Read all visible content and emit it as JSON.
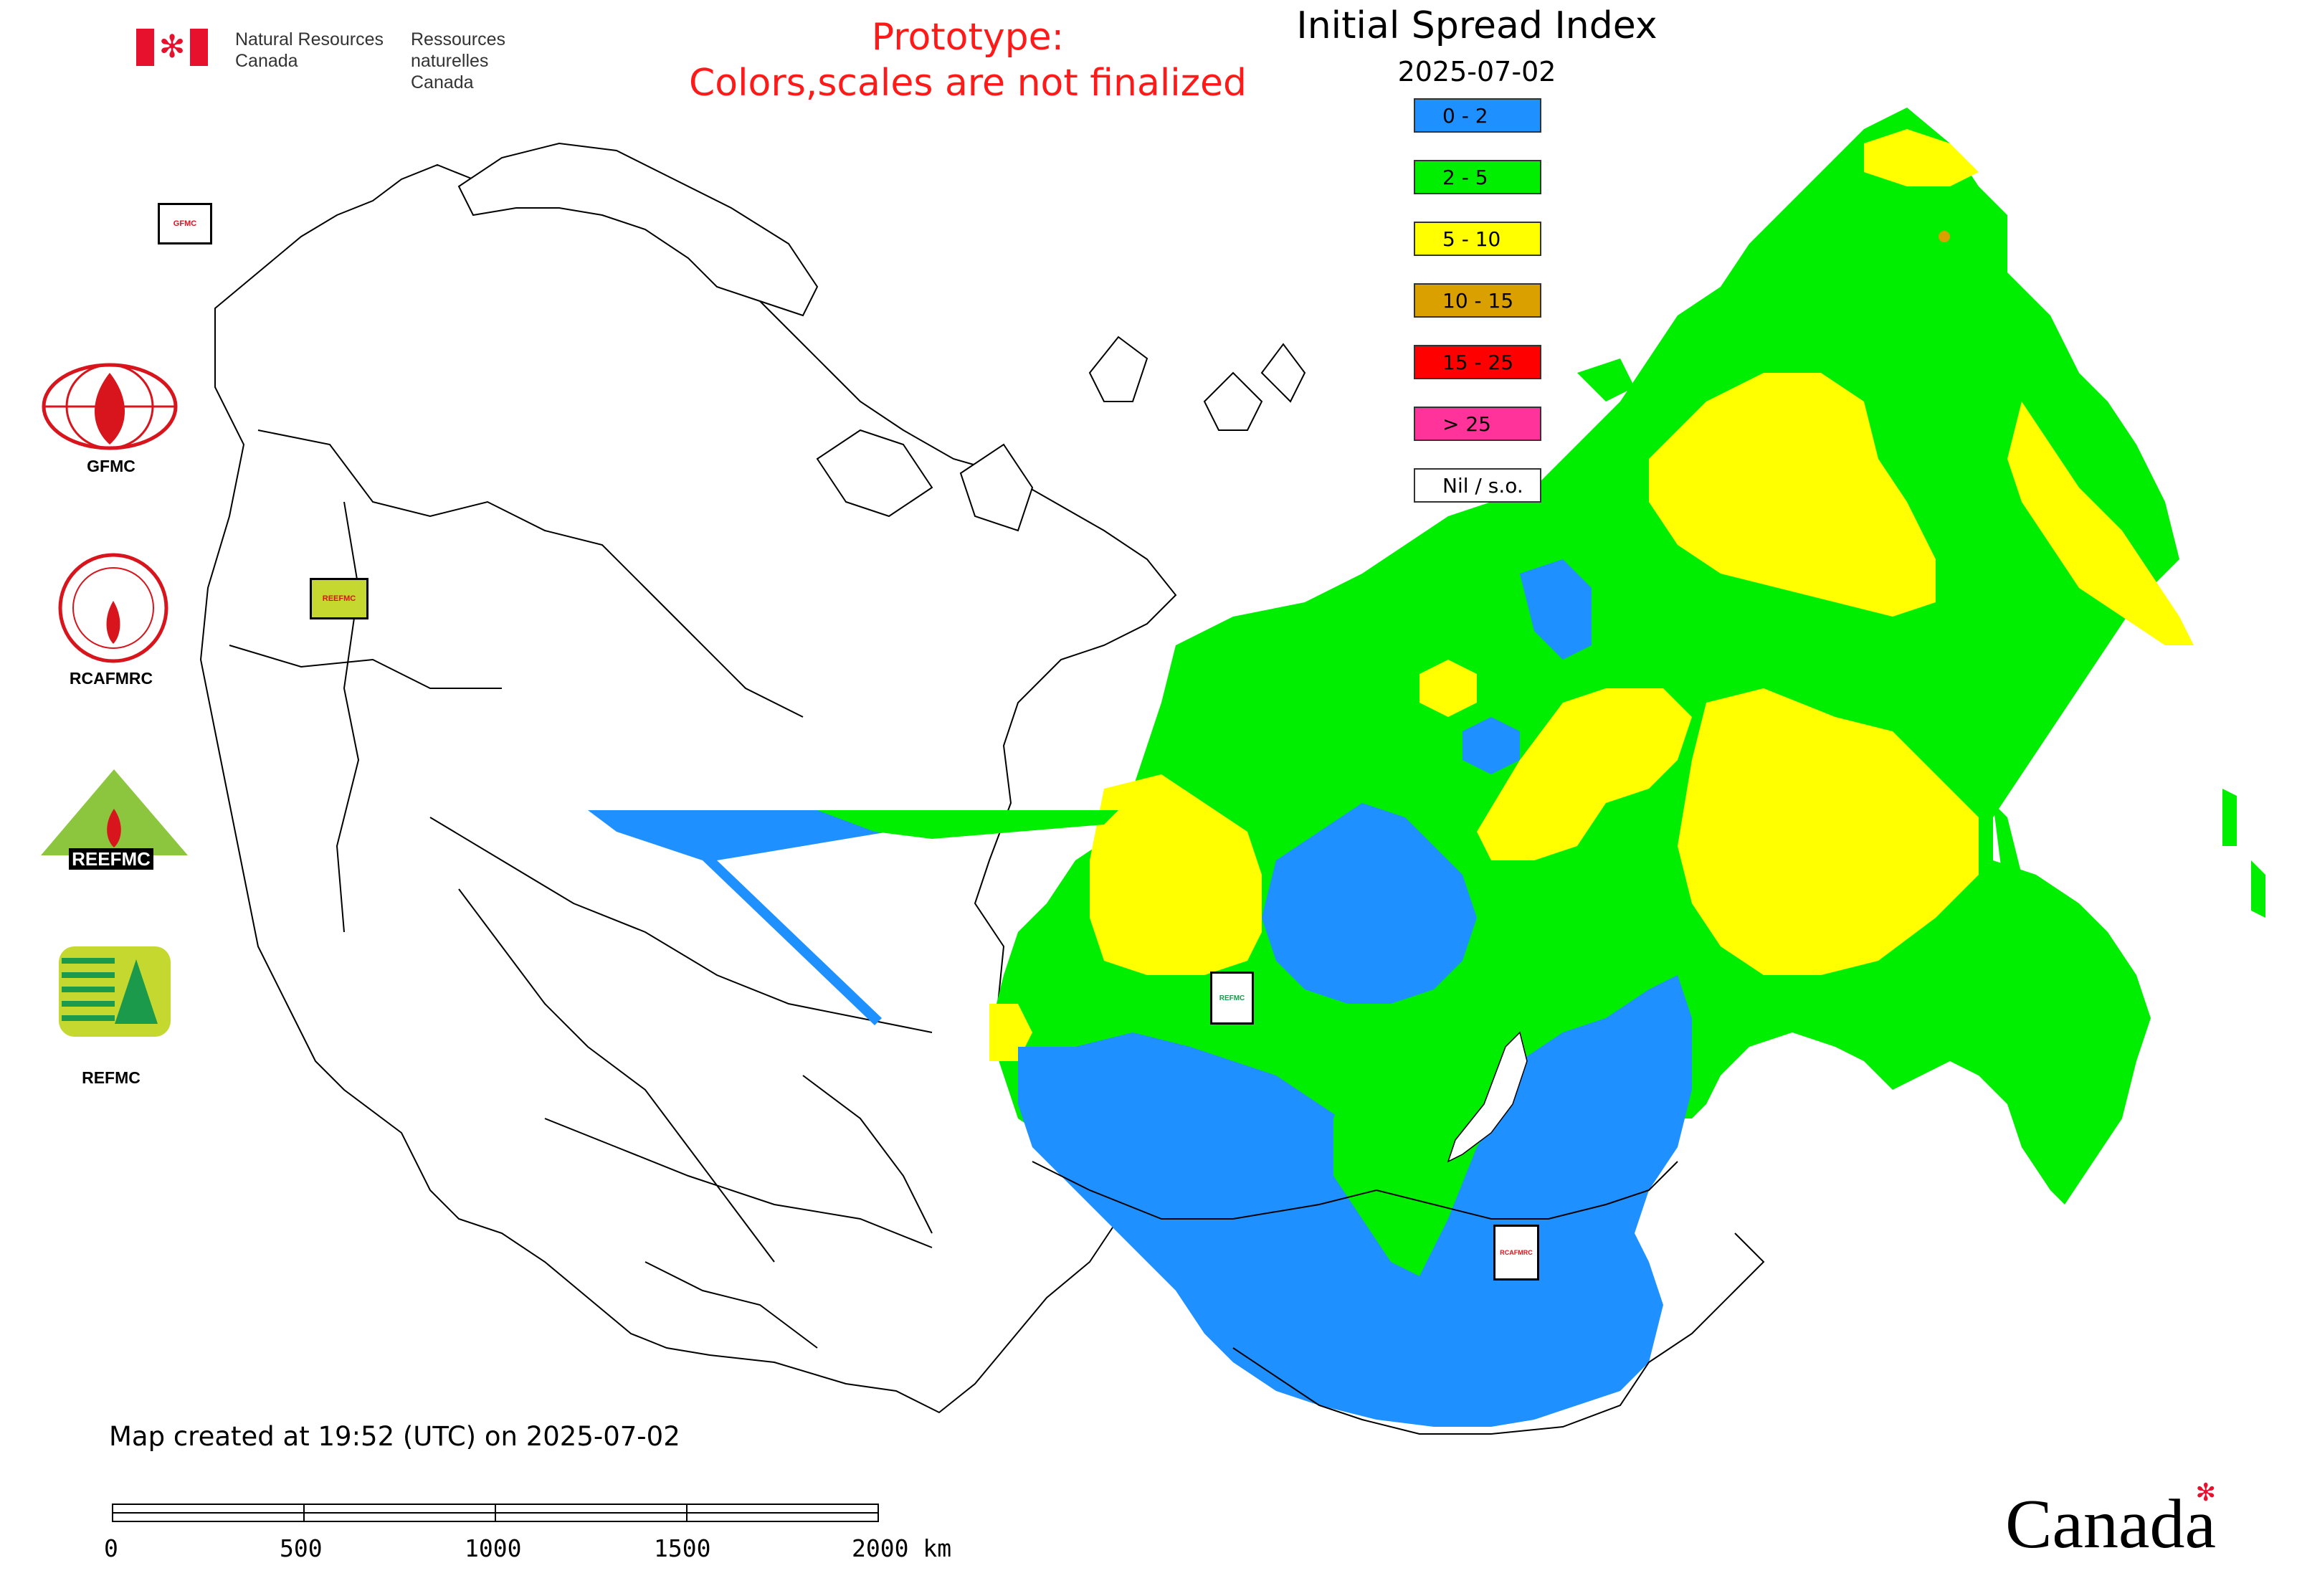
{
  "header": {
    "dept_en_line1": "Natural Resources",
    "dept_en_line2": "Canada",
    "dept_fr_line1": "Ressources naturelles",
    "dept_fr_line2": "Canada",
    "prototype_line1": "Prototype:",
    "prototype_line2": "Colors,scales are not finalized",
    "title": "Initial Spread Index",
    "date": "2025-07-02"
  },
  "legend": {
    "items": [
      {
        "label": "0 - 2",
        "color": "#1e90ff"
      },
      {
        "label": "2 - 5",
        "color": "#00ee00"
      },
      {
        "label": "5 - 10",
        "color": "#ffff00"
      },
      {
        "label": "10 - 15",
        "color": "#daa000"
      },
      {
        "label": "15 - 25",
        "color": "#ff0000"
      },
      {
        "label": "> 25",
        "color": "#ff3399"
      },
      {
        "label": "Nil / s.o.",
        "color": "#ffffff"
      }
    ]
  },
  "side_logos": {
    "gfmc": "GFMC",
    "rcafmrc": "RCAFMRC",
    "reefmc_text": "REEFMC",
    "refmc": "REFMC"
  },
  "map_markers": {
    "gfmc": "GFMC",
    "reefmc": "REEFMC",
    "refmc": "REFMC",
    "rcafmrc": "RCAFMRC"
  },
  "footer": {
    "created": "Map created at 19:52 (UTC) on 2025-07-02",
    "scale_labels": [
      "0",
      "500",
      "1000",
      "1500",
      "2000 km"
    ],
    "wordmark": "Canada"
  }
}
